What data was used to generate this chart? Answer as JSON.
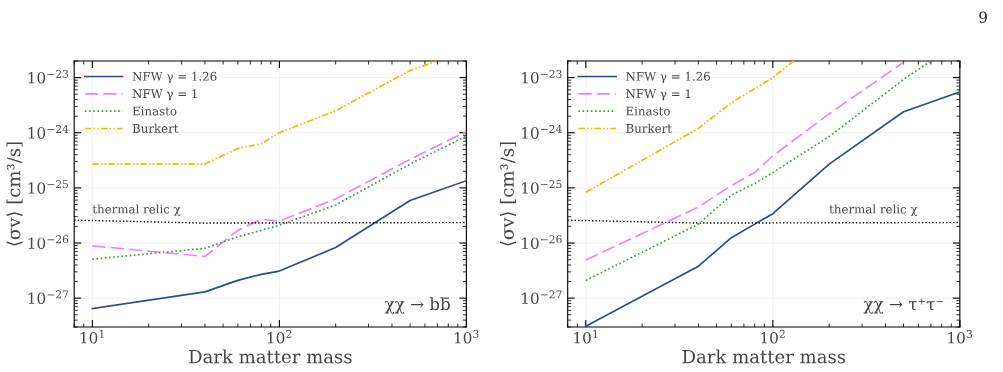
{
  "chart_data": [
    {
      "type": "line",
      "xlabel": "Dark matter mass",
      "ylabel": "⟨σv⟩ [cm³/s]",
      "log": "xy",
      "grid": true,
      "legend": "top left",
      "xlim": [
        8,
        1000
      ],
      "ylim": [
        3e-28,
        2e-23
      ],
      "xticks": [
        {
          "value": 10,
          "label": "10$^{1}$"
        },
        {
          "value": 100,
          "label": "10$^{2}$"
        },
        {
          "value": 1000,
          "label": "10$^{3}$"
        }
      ],
      "yticks": [
        {
          "value": 1e-27,
          "label": "10$^{−27}$"
        },
        {
          "value": 1e-26,
          "label": "10$^{−26}$"
        },
        {
          "value": 1e-25,
          "label": "10$^{−25}$"
        },
        {
          "value": 1e-24,
          "label": "10$^{−24}$"
        },
        {
          "value": 1e-23,
          "label": "10$^{−23}$"
        }
      ],
      "annotations": [
        {
          "text": "thermal relic χ",
          "x": 10,
          "y": 2.6e-26
        },
        "χχ → bb̄",
        "9"
      ],
      "series": [
        {
          "name": "NFW γ = 1.26",
          "color": "#2e4a87",
          "line_style": "solid",
          "x": [
            10,
            40,
            60,
            80,
            100,
            200,
            500,
            1000
          ],
          "values": [
            6.5e-28,
            1.3e-27,
            2.1e-27,
            2.7e-27,
            3.1e-27,
            8.3e-27,
            5.9e-26,
            1.35e-25
          ]
        },
        {
          "name": "NFW γ = 1",
          "color": "#ee82ee",
          "line_style": "dashed",
          "x": [
            10,
            40,
            60,
            80,
            100,
            200,
            500,
            1000
          ],
          "values": [
            8.9e-27,
            5.7e-27,
            1.7e-26,
            2.7e-26,
            2.5e-26,
            6.3e-26,
            3.3e-25,
            1.05e-24
          ]
        },
        {
          "name": "Einasto",
          "color": "#3a9a3a",
          "line_style": "dotted",
          "x": [
            10,
            40,
            60,
            80,
            100,
            200,
            500,
            1000
          ],
          "values": [
            5.1e-27,
            8e-27,
            1.3e-26,
            1.7e-26,
            2.1e-26,
            4.9e-26,
            2.7e-25,
            8.7e-25
          ]
        },
        {
          "name": "Burkert",
          "color": "#f5b800",
          "line_style": "dashdot",
          "x": [
            10,
            40,
            60,
            80,
            100,
            200,
            500,
            700
          ],
          "values": [
            2.7e-25,
            2.7e-25,
            5.2e-25,
            6.3e-25,
            1e-24,
            2.5e-24,
            1.35e-23,
            2e-23
          ]
        },
        {
          "color": "#000000",
          "line_style": "dotted",
          "x": [
            8,
            40,
            1000
          ],
          "values": [
            2.6e-26,
            2.3e-26,
            2.35e-26
          ]
        }
      ]
    },
    {
      "type": "line",
      "xlabel": "Dark matter mass",
      "ylabel": "⟨σv⟩ [cm³/s]",
      "log": "xy",
      "grid": true,
      "legend": "top left",
      "xlim": [
        8,
        1000
      ],
      "ylim": [
        3e-28,
        2e-23
      ],
      "xticks": [
        {
          "value": 10,
          "label": "10$^{1}$"
        },
        {
          "value": 100,
          "label": "10$^{2}$"
        },
        {
          "value": 1000,
          "label": "10$^{3}$"
        }
      ],
      "yticks": [
        {
          "value": 1e-27,
          "label": "10$^{−27}$"
        },
        {
          "value": 1e-26,
          "label": "10$^{−26}$"
        },
        {
          "value": 1e-25,
          "label": "10$^{−25}$"
        },
        {
          "value": 1e-24,
          "label": "10$^{−24}$"
        },
        {
          "value": 1e-23,
          "label": "10$^{−23}$"
        }
      ],
      "annotations": [
        {
          "text": "thermal relic χ",
          "x": 200,
          "y": 2.6e-26
        },
        "χχ → τ⁺τ⁻"
      ],
      "series": [
        {
          "name": "NFW γ = 1.26",
          "color": "#2e4a87",
          "line_style": "solid",
          "x": [
            10,
            40,
            60,
            80,
            100,
            200,
            500,
            1000
          ],
          "values": [
            3.1e-28,
            3.8e-27,
            1.25e-26,
            2.2e-26,
            3.4e-26,
            2.7e-25,
            2.4e-24,
            5.5e-24
          ]
        },
        {
          "name": "NFW γ = 1",
          "color": "#ee82ee",
          "line_style": "dashed",
          "x": [
            10,
            40,
            60,
            80,
            100,
            200,
            500
          ],
          "values": [
            4.9e-27,
            4.5e-26,
            1.1e-25,
            1.9e-25,
            3.8e-25,
            2.2e-24,
            1.9e-23
          ]
        },
        {
          "name": "Einasto",
          "color": "#3a9a3a",
          "line_style": "dotted",
          "x": [
            10,
            40,
            60,
            80,
            100,
            200,
            500,
            700
          ],
          "values": [
            2.1e-27,
            2.2e-26,
            7.4e-26,
            1.2e-25,
            1.9e-25,
            8.5e-25,
            9.3e-24,
            2e-23
          ]
        },
        {
          "name": "Burkert",
          "color": "#f5b800",
          "line_style": "dashdot",
          "x": [
            10,
            40,
            60,
            100,
            129
          ],
          "values": [
            8.3e-26,
            1.2e-24,
            3.5e-24,
            1e-23,
            2e-23
          ]
        },
        {
          "color": "#000000",
          "line_style": "dotted",
          "x": [
            8,
            40,
            1000
          ],
          "values": [
            2.6e-26,
            2.3e-26,
            2.35e-26
          ]
        }
      ]
    }
  ]
}
